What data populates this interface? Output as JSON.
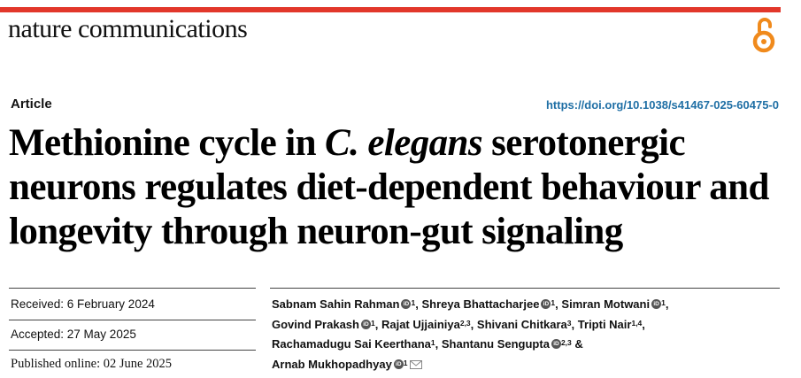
{
  "header": {
    "journal": "nature communications",
    "accent_color": "#e2372b",
    "open_access_icon": "open-access-lock-icon"
  },
  "article": {
    "type": "Article",
    "doi": "https://doi.org/10.1038/s41467-025-60475-0",
    "title_part1": "Methionine cycle in ",
    "title_italic": "C. elegans",
    "title_part2": " serotonergic neurons regulates diet-dependent behaviour and longevity through neuron-gut signaling"
  },
  "dates": {
    "received": "Received: 6 February 2024",
    "accepted": "Accepted: 27 May 2025",
    "published": "Published online: 02 June 2025"
  },
  "authors": [
    {
      "name": "Sabnam Sahin Rahman",
      "orcid": true,
      "sup": "1",
      "sep": ","
    },
    {
      "name": "Shreya Bhattacharjee",
      "orcid": true,
      "sup": "1",
      "sep": ","
    },
    {
      "name": "Simran Motwani",
      "orcid": true,
      "sup": "1",
      "sep": ","
    },
    {
      "name": "Govind Prakash",
      "orcid": true,
      "sup": "1",
      "sep": ","
    },
    {
      "name": "Rajat Ujjainiya",
      "orcid": false,
      "sup": "2,3",
      "sep": ","
    },
    {
      "name": "Shivani Chitkara",
      "orcid": false,
      "sup": "3",
      "sep": ","
    },
    {
      "name": "Tripti Nair",
      "orcid": false,
      "sup": "1,4",
      "sep": ","
    },
    {
      "name": "Rachamadugu Sai Keerthana",
      "orcid": false,
      "sup": "1",
      "sep": ","
    },
    {
      "name": "Shantanu Sengupta",
      "orcid": true,
      "sup": "2,3",
      "sep": " &"
    },
    {
      "name": "Arnab Mukhopadhyay",
      "orcid": true,
      "sup": "1",
      "sep": "",
      "corresponding": true
    }
  ]
}
